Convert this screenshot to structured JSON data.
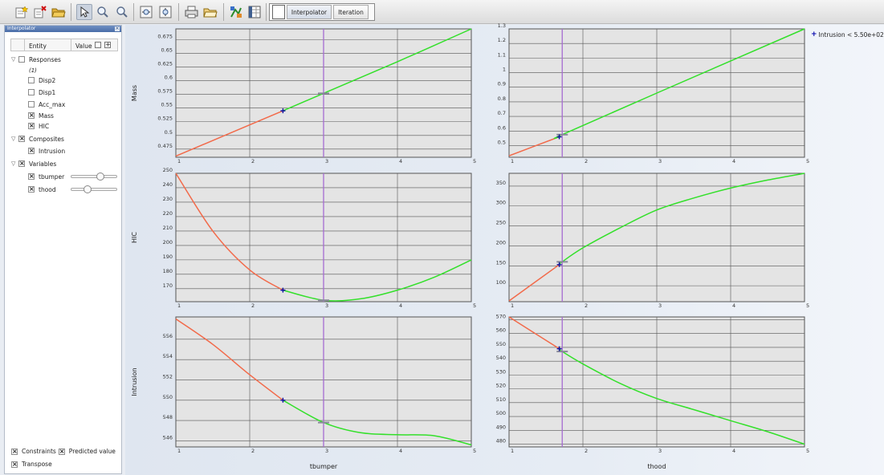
{
  "toolbar": {
    "icons": [
      "new-sheet-icon",
      "delete-icon",
      "open-folder-icon",
      "pointer-icon",
      "zoom-in-icon",
      "zoom-out-icon",
      "zoom-fit-x-icon",
      "zoom-fit-y-icon",
      "print-icon",
      "export-icon",
      "color-map-icon",
      "columns-icon"
    ],
    "modes": [
      "Interpolator",
      "Iteration"
    ]
  },
  "panel": {
    "title": "Interpolator",
    "col_entity": "Entity",
    "col_value": "Value",
    "responses_label": "Responses",
    "responses_count": "(1)",
    "responses": [
      {
        "label": "Disp2",
        "checked": false
      },
      {
        "label": "Disp1",
        "checked": false
      },
      {
        "label": "Acc_max",
        "checked": false
      },
      {
        "label": "Mass",
        "checked": true
      },
      {
        "label": "HIC",
        "checked": true
      }
    ],
    "composites_label": "Composites",
    "composites": [
      {
        "label": "Intrusion",
        "checked": true
      }
    ],
    "variables_label": "Variables",
    "variables": [
      {
        "label": "tbumper",
        "checked": true,
        "slider": 0.65
      },
      {
        "label": "thood",
        "checked": true,
        "slider": 0.32
      }
    ],
    "constraints_label": "Constraints",
    "predicted_label": "Predicted value",
    "transpose_label": "Transpose"
  },
  "legend": {
    "label": "Intrusion < 5.50e+02",
    "color": "#0000aa"
  },
  "colors": {
    "infeasible": "#f26a4a",
    "feasible": "#33e02a",
    "current": "#a56bd2",
    "marker": "#1010a0",
    "grid_bg": "#e4e4e4"
  },
  "chart_data": [
    {
      "type": "line",
      "row": 0,
      "col": 0,
      "ylabel": "Mass",
      "xlabel": "",
      "xlim": [
        1,
        5
      ],
      "ylim": [
        0.46,
        0.695
      ],
      "xticks": [
        "1",
        "2",
        "3",
        "4",
        "5"
      ],
      "yticks": [
        "0.475",
        "0.5",
        "0.525",
        "0.55",
        "0.575",
        "0.6",
        "0.625",
        "0.65",
        "0.675"
      ],
      "curve": [
        [
          1,
          0.462
        ],
        [
          2.45,
          0.545
        ],
        [
          3,
          0.577
        ],
        [
          4,
          0.635
        ],
        [
          5,
          0.695
        ]
      ],
      "split_x": 2.45,
      "current_x": 3,
      "marker": [
        2.45,
        0.545
      ],
      "predicted": [
        3,
        0.577
      ]
    },
    {
      "type": "line",
      "row": 0,
      "col": 1,
      "ylabel": "",
      "xlabel": "",
      "xlim": [
        1,
        5
      ],
      "ylim": [
        0.42,
        1.3
      ],
      "xticks": [
        "1",
        "2",
        "3",
        "4",
        "5"
      ],
      "yticks": [
        "0.5",
        "0.6",
        "0.7",
        "0.8",
        "0.9",
        "1",
        "1.1",
        "1.2",
        "1.3"
      ],
      "curve": [
        [
          1,
          0.43
        ],
        [
          1.68,
          0.56
        ],
        [
          1.72,
          0.575
        ],
        [
          3,
          0.86
        ],
        [
          5,
          1.3
        ]
      ],
      "split_x": 1.68,
      "current_x": 1.72,
      "marker": [
        1.68,
        0.56
      ],
      "predicted": [
        1.72,
        0.575
      ]
    },
    {
      "type": "line",
      "row": 1,
      "col": 0,
      "ylabel": "HIC",
      "xlabel": "",
      "xlim": [
        1,
        5
      ],
      "ylim": [
        161,
        250
      ],
      "xticks": [
        "1",
        "2",
        "3",
        "4",
        "5"
      ],
      "yticks": [
        "170",
        "180",
        "190",
        "200",
        "210",
        "220",
        "230",
        "240",
        "250"
      ],
      "curve": [
        [
          1,
          250
        ],
        [
          1.5,
          210
        ],
        [
          2,
          183
        ],
        [
          2.45,
          169
        ],
        [
          3,
          162
        ],
        [
          3.5,
          163
        ],
        [
          4,
          169
        ],
        [
          4.5,
          178
        ],
        [
          5,
          190
        ]
      ],
      "split_x": 2.45,
      "current_x": 3,
      "marker": [
        2.45,
        169
      ],
      "predicted": [
        3,
        162
      ]
    },
    {
      "type": "line",
      "row": 1,
      "col": 1,
      "ylabel": "",
      "xlabel": "",
      "xlim": [
        1,
        5
      ],
      "ylim": [
        60,
        382
      ],
      "xticks": [
        "1",
        "2",
        "3",
        "4",
        "5"
      ],
      "yticks": [
        "100",
        "150",
        "200",
        "250",
        "300",
        "350"
      ],
      "curve": [
        [
          1,
          62
        ],
        [
          1.68,
          153
        ],
        [
          1.72,
          160
        ],
        [
          2,
          195
        ],
        [
          2.5,
          245
        ],
        [
          3,
          290
        ],
        [
          3.5,
          320
        ],
        [
          4,
          345
        ],
        [
          4.5,
          365
        ],
        [
          5,
          382
        ]
      ],
      "split_x": 1.68,
      "current_x": 1.72,
      "marker": [
        1.68,
        153
      ],
      "predicted": [
        1.72,
        160
      ]
    },
    {
      "type": "line",
      "row": 2,
      "col": 0,
      "ylabel": "Intrusion",
      "xlabel": "tbumper",
      "xlim": [
        1,
        5
      ],
      "ylim": [
        545.4,
        558.2
      ],
      "xticks": [
        "1",
        "2",
        "3",
        "4",
        "5"
      ],
      "yticks": [
        "546",
        "548",
        "550",
        "552",
        "554",
        "556"
      ],
      "curve": [
        [
          1,
          558
        ],
        [
          1.5,
          555.5
        ],
        [
          2,
          552.5
        ],
        [
          2.45,
          550
        ],
        [
          3,
          547.8
        ],
        [
          3.5,
          546.8
        ],
        [
          4,
          546.6
        ],
        [
          4.5,
          546.5
        ],
        [
          5,
          545.6
        ]
      ],
      "split_x": 2.45,
      "current_x": 3,
      "marker": [
        2.45,
        550
      ],
      "predicted": [
        3,
        547.8
      ]
    },
    {
      "type": "line",
      "row": 2,
      "col": 1,
      "ylabel": "",
      "xlabel": "thood",
      "xlim": [
        1,
        5
      ],
      "ylim": [
        478,
        572
      ],
      "xticks": [
        "1",
        "2",
        "3",
        "4",
        "5"
      ],
      "yticks": [
        "480",
        "490",
        "500",
        "510",
        "520",
        "530",
        "540",
        "550",
        "560",
        "570"
      ],
      "curve": [
        [
          1,
          572
        ],
        [
          1.68,
          549
        ],
        [
          1.72,
          547
        ],
        [
          2,
          538
        ],
        [
          2.5,
          524
        ],
        [
          3,
          513
        ],
        [
          3.5,
          505
        ],
        [
          4,
          497
        ],
        [
          4.5,
          489
        ],
        [
          5,
          480
        ]
      ],
      "split_x": 1.68,
      "current_x": 1.72,
      "marker": [
        1.68,
        549
      ],
      "predicted": [
        1.72,
        547
      ]
    }
  ]
}
